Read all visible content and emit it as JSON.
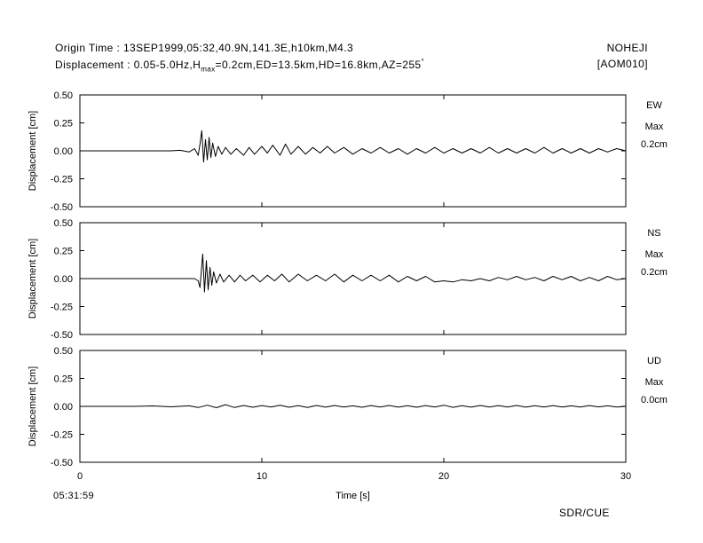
{
  "header": {
    "origin_label": "Origin Time",
    "origin_value": "13SEP1999,05:32,40.9N,141.3E,h10km,M4.3",
    "disp_label": "Displacement",
    "disp_value_a": "0.05-5.0Hz,H",
    "disp_hsub": "max",
    "disp_value_b": "=0.2cm,ED=13.5km,HD=16.8km,AZ=255",
    "disp_degree": "°",
    "station_name": "NOHEJI",
    "station_code": "[AOM010]"
  },
  "footer": {
    "start_time": "05:31:59",
    "credit": "SDR/CUE"
  },
  "colors": {
    "trace": "#000000",
    "frame": "#000000",
    "background": "#ffffff"
  },
  "chart_data": {
    "type": "line",
    "xlabel": "Time [s]",
    "xlim": [
      0,
      30
    ],
    "xticks": [
      0,
      10,
      20,
      30
    ],
    "grid": false,
    "panels": [
      {
        "component": "EW",
        "max_label": "Max",
        "max_value": "0.2cm",
        "ylabel": "Displacement [cm]",
        "ylim": [
          -0.5,
          0.5
        ],
        "yticks": [
          0.5,
          0.25,
          0.0,
          -0.25,
          -0.5
        ],
        "series": {
          "x": [
            0,
            1,
            2,
            3,
            4,
            5,
            5.5,
            6,
            6.3,
            6.5,
            6.6,
            6.7,
            6.8,
            6.9,
            7.0,
            7.1,
            7.2,
            7.3,
            7.45,
            7.6,
            7.8,
            8.0,
            8.3,
            8.6,
            9.0,
            9.3,
            9.6,
            10.0,
            10.3,
            10.6,
            11.0,
            11.3,
            11.6,
            12.0,
            12.4,
            12.8,
            13.2,
            13.6,
            14.0,
            14.5,
            15.0,
            15.5,
            16.0,
            16.5,
            17.0,
            17.5,
            18.0,
            18.5,
            19.0,
            19.5,
            20.0,
            20.5,
            21.0,
            21.5,
            22.0,
            22.5,
            23.0,
            23.5,
            24.0,
            24.5,
            25.0,
            25.5,
            26.0,
            26.5,
            27.0,
            27.5,
            28.0,
            28.5,
            29.0,
            29.5,
            30
          ],
          "y": [
            0,
            0,
            0,
            0,
            0,
            0,
            0.005,
            -0.01,
            0.02,
            -0.04,
            0.06,
            0.18,
            -0.1,
            0.1,
            -0.08,
            0.12,
            -0.06,
            0.07,
            -0.05,
            0.04,
            -0.03,
            0.03,
            -0.03,
            0.02,
            -0.04,
            0.03,
            -0.03,
            0.04,
            -0.02,
            0.05,
            -0.04,
            0.06,
            -0.03,
            0.04,
            -0.03,
            0.03,
            -0.02,
            0.04,
            -0.02,
            0.03,
            -0.03,
            0.02,
            -0.02,
            0.03,
            -0.02,
            0.02,
            -0.03,
            0.02,
            -0.02,
            0.03,
            -0.02,
            0.02,
            -0.02,
            0.02,
            -0.02,
            0.03,
            -0.02,
            0.02,
            -0.02,
            0.02,
            -0.02,
            0.03,
            -0.02,
            0.02,
            -0.02,
            0.02,
            -0.02,
            0.02,
            -0.01,
            0.02,
            0
          ]
        }
      },
      {
        "component": "NS",
        "max_label": "Max",
        "max_value": "0.2cm",
        "ylabel": "Displacement [cm]",
        "ylim": [
          -0.5,
          0.5
        ],
        "yticks": [
          0.5,
          0.25,
          0.0,
          -0.25,
          -0.5
        ],
        "series": {
          "x": [
            0,
            1,
            2,
            3,
            4,
            5,
            6,
            6.3,
            6.5,
            6.6,
            6.75,
            6.85,
            6.95,
            7.05,
            7.15,
            7.25,
            7.35,
            7.5,
            7.7,
            7.9,
            8.2,
            8.5,
            8.8,
            9.1,
            9.5,
            9.9,
            10.3,
            10.7,
            11.1,
            11.5,
            12.0,
            12.5,
            13.0,
            13.5,
            14.0,
            14.5,
            15.0,
            15.5,
            16.0,
            16.5,
            17.0,
            17.5,
            18.0,
            18.5,
            19.0,
            19.5,
            20.0,
            20.5,
            21.0,
            21.5,
            22.0,
            22.5,
            23.0,
            23.5,
            24.0,
            24.5,
            25.0,
            25.5,
            26.0,
            26.5,
            27.0,
            27.5,
            28.0,
            28.5,
            29.0,
            29.5,
            30
          ],
          "y": [
            0,
            0,
            0,
            0,
            0,
            0,
            0,
            0,
            -0.02,
            -0.08,
            0.22,
            -0.12,
            0.16,
            -0.1,
            0.1,
            -0.06,
            0.06,
            -0.04,
            0.04,
            -0.03,
            0.03,
            -0.03,
            0.03,
            -0.02,
            0.03,
            -0.03,
            0.03,
            -0.02,
            0.04,
            -0.03,
            0.04,
            -0.02,
            0.03,
            -0.02,
            0.04,
            -0.03,
            0.03,
            -0.02,
            0.03,
            -0.02,
            0.03,
            -0.03,
            0.02,
            -0.02,
            0.02,
            -0.03,
            -0.02,
            -0.03,
            -0.01,
            -0.02,
            0.0,
            -0.02,
            0.01,
            -0.01,
            0.02,
            -0.01,
            0.01,
            -0.02,
            0.02,
            -0.01,
            0.02,
            -0.02,
            0.01,
            -0.02,
            0.02,
            -0.01,
            0
          ]
        }
      },
      {
        "component": "UD",
        "max_label": "Max",
        "max_value": "0.0cm",
        "ylabel": "Displacement [cm]",
        "ylim": [
          -0.5,
          0.5
        ],
        "yticks": [
          0.5,
          0.25,
          0.0,
          -0.25,
          -0.5
        ],
        "series": {
          "x": [
            0,
            1,
            2,
            3,
            4,
            5,
            6,
            6.5,
            7,
            7.5,
            8,
            8.5,
            9,
            9.5,
            10,
            10.5,
            11,
            11.5,
            12,
            12.5,
            13,
            13.5,
            14,
            14.5,
            15,
            15.5,
            16,
            16.5,
            17,
            17.5,
            18,
            18.5,
            19,
            19.5,
            20,
            20.5,
            21,
            21.5,
            22,
            22.5,
            23,
            23.5,
            24,
            24.5,
            25,
            25.5,
            26,
            26.5,
            27,
            27.5,
            28,
            28.5,
            29,
            29.5,
            30
          ],
          "y": [
            0,
            0,
            0,
            0,
            0.004,
            -0.004,
            0.005,
            -0.01,
            0.01,
            -0.012,
            0.015,
            -0.01,
            0.008,
            -0.008,
            0.007,
            -0.006,
            0.01,
            -0.008,
            0.007,
            -0.01,
            0.008,
            -0.007,
            0.008,
            -0.006,
            0.005,
            -0.008,
            0.007,
            -0.006,
            0.008,
            -0.007,
            0.006,
            -0.008,
            0.007,
            -0.006,
            0.01,
            -0.009,
            0.006,
            -0.007,
            0.008,
            -0.006,
            0.007,
            -0.006,
            0.008,
            -0.007,
            0.006,
            -0.006,
            0.007,
            -0.006,
            0.005,
            -0.006,
            0.007,
            -0.005,
            0.005,
            -0.006,
            0
          ]
        }
      }
    ]
  }
}
